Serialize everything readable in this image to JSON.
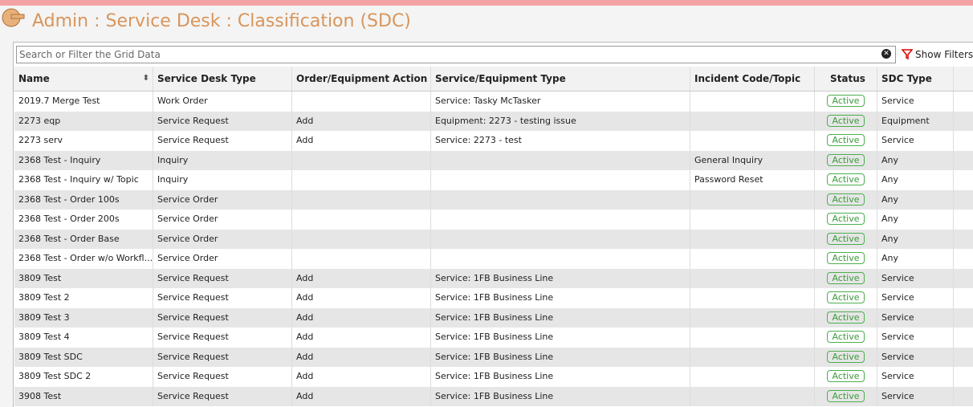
{
  "header": {
    "title": "Admin : Service Desk : Classification (SDC)"
  },
  "search": {
    "placeholder": "Search or Filter the Grid Data",
    "filters_button": "Show Filters"
  },
  "table": {
    "columns": [
      "Name",
      "Service Desk Type",
      "Order/Equipment Action",
      "Service/Equipment Type",
      "Incident Code/Topic",
      "Status",
      "SDC Type"
    ],
    "rows": [
      [
        "2019.7 Merge Test",
        "Work Order",
        null,
        "Service: Tasky McTasker",
        null,
        "Active",
        "Service"
      ],
      [
        "2273 eqp",
        "Service Request",
        "Add",
        "Equipment: 2273 - testing issue",
        null,
        "Active",
        "Equipment"
      ],
      [
        "2273 serv",
        "Service Request",
        "Add",
        "Service: 2273 - test",
        null,
        "Active",
        "Service"
      ],
      [
        "2368 Test - Inquiry",
        "Inquiry",
        null,
        null,
        "General Inquiry",
        "Active",
        "Any"
      ],
      [
        "2368 Test - Inquiry w/ Topic",
        "Inquiry",
        null,
        null,
        "Password Reset",
        "Active",
        "Any"
      ],
      [
        "2368 Test - Order 100s",
        "Service Order",
        null,
        null,
        null,
        "Active",
        "Any"
      ],
      [
        "2368 Test - Order 200s",
        "Service Order",
        null,
        null,
        null,
        "Active",
        "Any"
      ],
      [
        "2368 Test - Order Base",
        "Service Order",
        null,
        null,
        null,
        "Active",
        "Any"
      ],
      [
        "2368 Test - Order w/o Workfl...",
        "Service Order",
        null,
        null,
        null,
        "Active",
        "Any"
      ],
      [
        "3809 Test",
        "Service Request",
        "Add",
        "Service: 1FB Business Line",
        null,
        "Active",
        "Service"
      ],
      [
        "3809 Test 2",
        "Service Request",
        "Add",
        "Service: 1FB Business Line",
        null,
        "Active",
        "Service"
      ],
      [
        "3809 Test 3",
        "Service Request",
        "Add",
        "Service: 1FB Business Line",
        null,
        "Active",
        "Service"
      ],
      [
        "3809 Test 4",
        "Service Request",
        "Add",
        "Service: 1FB Business Line",
        null,
        "Active",
        "Service"
      ],
      [
        "3809 Test SDC",
        "Service Request",
        "Add",
        "Service: 1FB Business Line",
        null,
        "Active",
        "Service"
      ],
      [
        "3809 Test SDC 2",
        "Service Request",
        "Add",
        "Service: 1FB Business Line",
        null,
        "Active",
        "Service"
      ],
      [
        "3908 Test",
        "Service Request",
        "Add",
        "Service: 1FB Business Line",
        null,
        "Active",
        "Service"
      ]
    ]
  }
}
